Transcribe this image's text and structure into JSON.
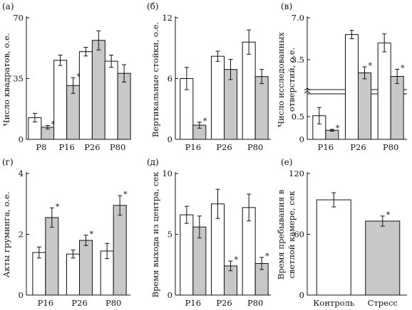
{
  "chart_data": [
    {
      "panel_label": "(а)",
      "type": "bar",
      "ylabel": "Число квадратов, о.е.",
      "ylim": [
        0,
        70
      ],
      "yticks": [
        0,
        35,
        70
      ],
      "categories": [
        "P8",
        "P16",
        "P26",
        "P80"
      ],
      "series": [
        {
          "values": [
            12.5,
            45.5,
            50.5,
            45.0
          ],
          "errors": [
            2.5,
            3.0,
            2.5,
            3.5
          ]
        },
        {
          "values": [
            7.0,
            31.0,
            57.0,
            38.0
          ],
          "errors": [
            1.0,
            4.5,
            5.5,
            5.0
          ]
        }
      ],
      "significance": [
        "*",
        "*",
        "",
        ""
      ]
    },
    {
      "panel_label": "(б)",
      "type": "bar",
      "ylabel": "Вертикальные стойки, о.е.",
      "ylim": [
        0,
        12
      ],
      "yticks": [
        0,
        6,
        12
      ],
      "categories": [
        "P16",
        "P26",
        "P80"
      ],
      "series": [
        {
          "values": [
            6.0,
            8.2,
            9.6
          ],
          "errors": [
            1.1,
            0.5,
            1.2
          ]
        },
        {
          "values": [
            1.4,
            6.9,
            6.2
          ],
          "errors": [
            0.3,
            1.0,
            0.7
          ]
        }
      ],
      "significance": [
        "*",
        "",
        ""
      ]
    },
    {
      "panel_label": "(в)",
      "type": "bar",
      "broken_axis": true,
      "ylabel": "Число исследованных отверстий, о.е.",
      "yticks": [
        0,
        0.5,
        3.5,
        7.0
      ],
      "ytick_labels": [
        "0",
        "0.5",
        "3.5",
        "7.0"
      ],
      "categories": [
        "P16",
        "P26",
        "P80"
      ],
      "series": [
        {
          "values": [
            0.52,
            5.6,
            4.9
          ],
          "errors": [
            0.18,
            0.35,
            0.75
          ]
        },
        {
          "values": [
            0.2,
            2.4,
            2.1
          ],
          "errors": [
            0.02,
            0.5,
            0.6
          ]
        }
      ],
      "significance": [
        "*",
        "*",
        "*"
      ]
    },
    {
      "panel_label": "(г)",
      "type": "bar",
      "ylabel": "Акты груминга, о.е.",
      "ylim": [
        0,
        4
      ],
      "yticks": [
        0,
        2,
        4
      ],
      "categories": [
        "P16",
        "P26",
        "P80"
      ],
      "series": [
        {
          "values": [
            1.4,
            1.35,
            1.45
          ],
          "errors": [
            0.18,
            0.13,
            0.25
          ]
        },
        {
          "values": [
            2.55,
            1.8,
            2.95
          ],
          "errors": [
            0.32,
            0.17,
            0.32
          ]
        }
      ],
      "significance": [
        "*",
        "*",
        "*"
      ]
    },
    {
      "panel_label": "(д)",
      "type": "bar",
      "ylabel": "Время выхода из центра, сек",
      "ylim": [
        0,
        10
      ],
      "yticks": [
        0,
        5,
        10
      ],
      "categories": [
        "P16",
        "P26",
        "P80"
      ],
      "series": [
        {
          "values": [
            6.6,
            7.5,
            7.2
          ],
          "errors": [
            0.7,
            1.2,
            1.1
          ]
        },
        {
          "values": [
            5.6,
            2.4,
            2.6
          ],
          "errors": [
            0.9,
            0.4,
            0.5
          ]
        }
      ],
      "significance": [
        "",
        "*",
        "*"
      ]
    },
    {
      "panel_label": "(е)",
      "type": "bar",
      "ylabel": "Время пребывания в светлой камере, сек",
      "ylim": [
        0,
        120
      ],
      "yticks": [
        0,
        60,
        120
      ],
      "categories": [
        "Контроль",
        "Стресс"
      ],
      "values": [
        94,
        73
      ],
      "errors": [
        7,
        5
      ],
      "significance": [
        "",
        "*"
      ]
    }
  ]
}
